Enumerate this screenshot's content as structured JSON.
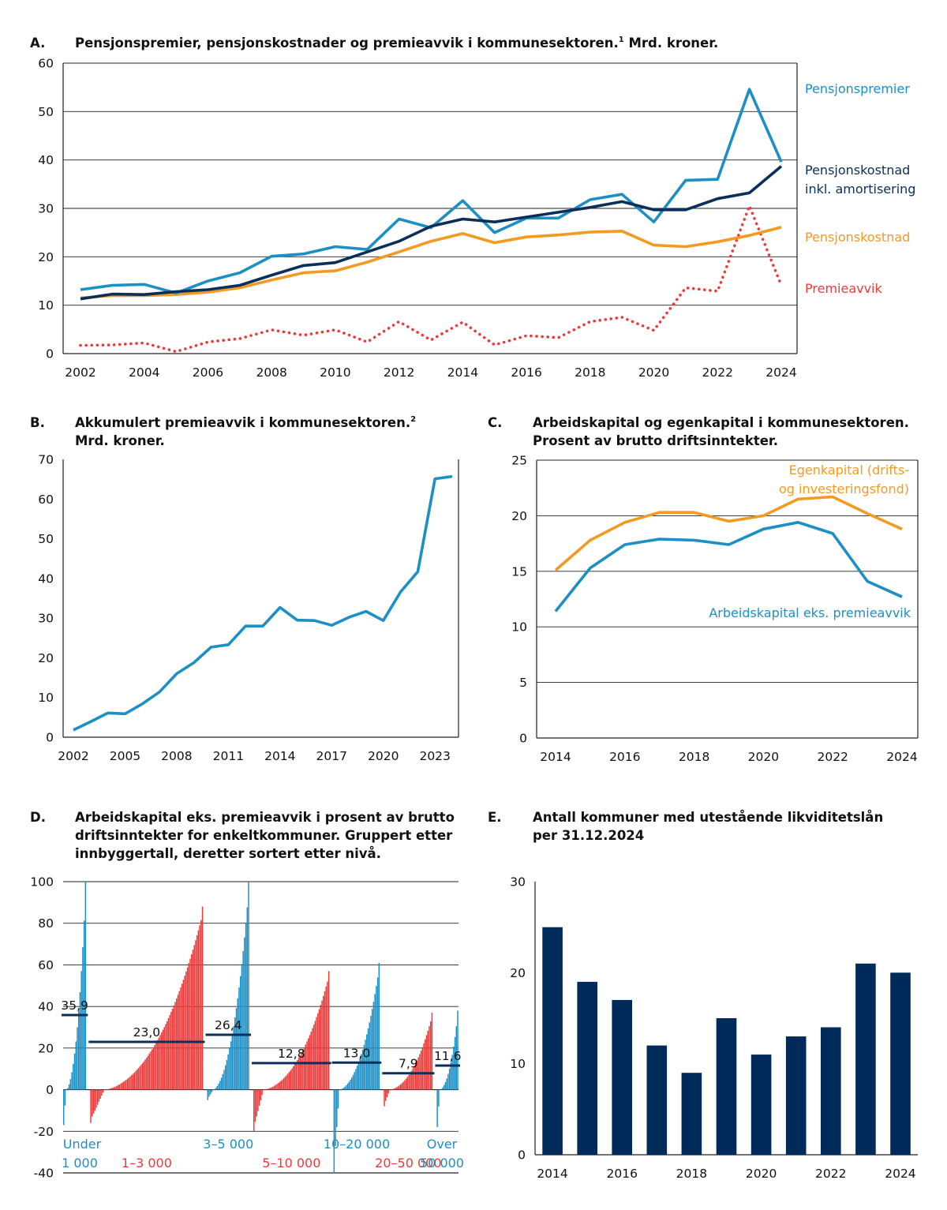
{
  "colors": {
    "light_blue": "#1c8fc5",
    "dark_navy": "#0b2f5b",
    "orange": "#f39a23",
    "red": "#ec3a3a",
    "bar_navy": "#002a5a"
  },
  "chart_data": [
    {
      "id": "A",
      "type": "line",
      "letter": "A.",
      "title": "Pensjonspremier, pensjonskostnader og premieavvik i kommunesektoren.",
      "footnote": "1",
      "title_suffix": " Mrd. kroner.",
      "x": [
        2002,
        2003,
        2004,
        2005,
        2006,
        2007,
        2008,
        2009,
        2010,
        2011,
        2012,
        2013,
        2014,
        2015,
        2016,
        2017,
        2018,
        2019,
        2020,
        2021,
        2022,
        2023,
        2024
      ],
      "xticks": [
        "2002",
        "2004",
        "2006",
        "2008",
        "2010",
        "2012",
        "2014",
        "2016",
        "2018",
        "2020",
        "2022",
        "2024"
      ],
      "ylim": [
        0,
        60
      ],
      "yticks": [
        "0",
        "10",
        "20",
        "30",
        "40",
        "50",
        "60"
      ],
      "series": [
        {
          "name": "Pensjonspremier",
          "color": "#1c8fc5",
          "style": "solid",
          "values": [
            13.2,
            14.1,
            14.3,
            12.5,
            15.0,
            16.7,
            20.1,
            20.6,
            22.1,
            21.5,
            27.8,
            26.0,
            31.6,
            25.0,
            28.0,
            28.0,
            31.8,
            32.9,
            27.2,
            35.8,
            36.0,
            54.6,
            39.6
          ]
        },
        {
          "name": "Pensjonskostnad inkl. amortisering",
          "line1": "Pensjonskostnad",
          "line2": "inkl. amortisering",
          "color": "#0b2f5b",
          "style": "solid",
          "values": [
            11.3,
            12.3,
            12.2,
            12.8,
            13.2,
            14.1,
            16.2,
            18.2,
            18.8,
            21.0,
            23.2,
            26.3,
            27.8,
            27.2,
            28.2,
            29.2,
            30.2,
            31.4,
            29.7,
            29.7,
            32.0,
            33.2,
            38.7
          ]
        },
        {
          "name": "Pensjonskostnad",
          "color": "#f39a23",
          "style": "solid",
          "values": [
            11.5,
            12.0,
            12.0,
            12.2,
            12.7,
            13.6,
            15.2,
            16.7,
            17.1,
            18.9,
            21.0,
            23.2,
            24.8,
            22.9,
            24.1,
            24.5,
            25.1,
            25.3,
            22.4,
            22.1,
            23.1,
            24.4,
            26.1
          ]
        },
        {
          "name": "Premieavvik",
          "color": "#ec3a3a",
          "style": "dotted",
          "values": [
            1.7,
            1.8,
            2.2,
            0.4,
            2.4,
            3.1,
            4.9,
            3.8,
            4.9,
            2.4,
            6.6,
            2.8,
            6.5,
            1.8,
            3.7,
            3.3,
            6.6,
            7.5,
            4.8,
            13.6,
            12.9,
            30.5,
            14.1
          ]
        }
      ]
    },
    {
      "id": "B",
      "type": "line",
      "letter": "B.",
      "title_line1": "Akkumulert premieavvik i kommunesektoren.",
      "footnote": "2",
      "title_line2": "Mrd. kroner.",
      "x": [
        2002,
        2003,
        2004,
        2005,
        2006,
        2007,
        2008,
        2009,
        2010,
        2011,
        2012,
        2013,
        2014,
        2015,
        2016,
        2017,
        2018,
        2019,
        2020,
        2021,
        2022,
        2023,
        2024
      ],
      "xticks": [
        "2002",
        "2005",
        "2008",
        "2011",
        "2014",
        "2017",
        "2020",
        "2023"
      ],
      "ylim": [
        0,
        70
      ],
      "yticks": [
        "0",
        "10",
        "20",
        "30",
        "40",
        "50",
        "60",
        "70"
      ],
      "series": [
        {
          "name": "Akkumulert premieavvik",
          "color": "#1c8fc5",
          "values": [
            1.8,
            3.9,
            6.1,
            5.9,
            8.4,
            11.4,
            16.0,
            18.8,
            22.7,
            23.3,
            28.0,
            28.0,
            32.7,
            29.5,
            29.4,
            28.2,
            30.2,
            31.7,
            29.4,
            36.6,
            41.7,
            65.1,
            65.7
          ]
        }
      ]
    },
    {
      "id": "C",
      "type": "line",
      "letter": "C.",
      "title_line1": "Arbeidskapital og egenkapital i kommunesektoren.",
      "title_line2": "Prosent av brutto driftsinntekter.",
      "x": [
        2014,
        2015,
        2016,
        2017,
        2018,
        2019,
        2020,
        2021,
        2022,
        2023,
        2024
      ],
      "xticks": [
        "2014",
        "2016",
        "2018",
        "2020",
        "2022",
        "2024"
      ],
      "ylim": [
        0,
        25
      ],
      "yticks": [
        "0",
        "5",
        "10",
        "15",
        "20",
        "25"
      ],
      "series": [
        {
          "name": "Egenkapital (drifts- og investeringsfond)",
          "line1": "Egenkapital (drifts-",
          "line2": "og investeringsfond)",
          "color": "#f39a23",
          "values": [
            15.1,
            17.8,
            19.4,
            20.3,
            20.3,
            19.5,
            20.0,
            21.5,
            21.7,
            20.2,
            18.8
          ]
        },
        {
          "name": "Arbeidskapital eks. premieavvik",
          "color": "#1c8fc5",
          "values": [
            11.4,
            15.3,
            17.4,
            17.9,
            17.8,
            17.4,
            18.8,
            19.4,
            18.4,
            14.1,
            12.7
          ]
        }
      ]
    },
    {
      "id": "D",
      "type": "bar",
      "letter": "D.",
      "title_line1": "Arbeidskapital eks. premieavvik i prosent av brutto",
      "title_line2": "driftsinntekter for enkeltkommuner. Gruppert etter",
      "title_line3": "innbyggertall, deretter sortert etter nivå.",
      "ylim": [
        -40,
        100
      ],
      "yticks": [
        "-40",
        "-20",
        "0",
        "20",
        "40",
        "60",
        "80",
        "100"
      ],
      "groups": [
        {
          "label": "Under 1 000",
          "label_line1": "Under",
          "label_line2": "1 000",
          "color": "#1c8fc5",
          "count": 17,
          "min": -17,
          "max": 100,
          "mean": 35.9,
          "mean_label": "35,9"
        },
        {
          "label": "1–3 000",
          "label_line1": "",
          "label_line2": "1–3 000",
          "color": "#ec3a3a",
          "count": 83,
          "min": -16,
          "max": 88,
          "mean": 23.0,
          "mean_label": "23,0"
        },
        {
          "label": "3–5 000",
          "label_line1": "3–5 000",
          "label_line2": "",
          "color": "#1c8fc5",
          "count": 31,
          "min": -5,
          "max": 100,
          "mean": 26.4,
          "mean_label": "26,4"
        },
        {
          "label": "5–10 000",
          "label_line1": "",
          "label_line2": "5–10 000",
          "color": "#ec3a3a",
          "count": 56,
          "min": -20,
          "max": 57,
          "mean": 12.8,
          "mean_label": "12,8"
        },
        {
          "label": "10–20 000",
          "label_line1": "10–20 000",
          "label_line2": "",
          "color": "#1c8fc5",
          "count": 34,
          "min": -40,
          "max": 61,
          "mean": 13.0,
          "mean_label": "13,0"
        },
        {
          "label": "20–50 000",
          "label_line1": "",
          "label_line2": "20–50 000",
          "color": "#ec3a3a",
          "count": 36,
          "min": -8,
          "max": 37,
          "mean": 7.9,
          "mean_label": "7,9"
        },
        {
          "label": "Over 50 000",
          "label_line1": "Over",
          "label_line2": "50 000",
          "color": "#1c8fc5",
          "count": 16,
          "min": -18,
          "max": 38,
          "mean": 11.6,
          "mean_label": "11,6"
        }
      ]
    },
    {
      "id": "E",
      "type": "bar",
      "letter": "E.",
      "title_line1": "Antall kommuner med utestående likviditetslån",
      "title_line2": "per 31.12.2024",
      "categories": [
        "2014",
        "2015",
        "2016",
        "2017",
        "2018",
        "2019",
        "2020",
        "2021",
        "2022",
        "2023",
        "2024"
      ],
      "xticks": [
        "2014",
        "2016",
        "2018",
        "2020",
        "2022",
        "2024"
      ],
      "values": [
        25,
        19,
        17,
        12,
        9,
        15,
        11,
        13,
        14,
        21,
        20
      ],
      "ylim": [
        0,
        30
      ],
      "yticks": [
        "0",
        "10",
        "20",
        "30"
      ],
      "color": "#002a5a"
    }
  ]
}
